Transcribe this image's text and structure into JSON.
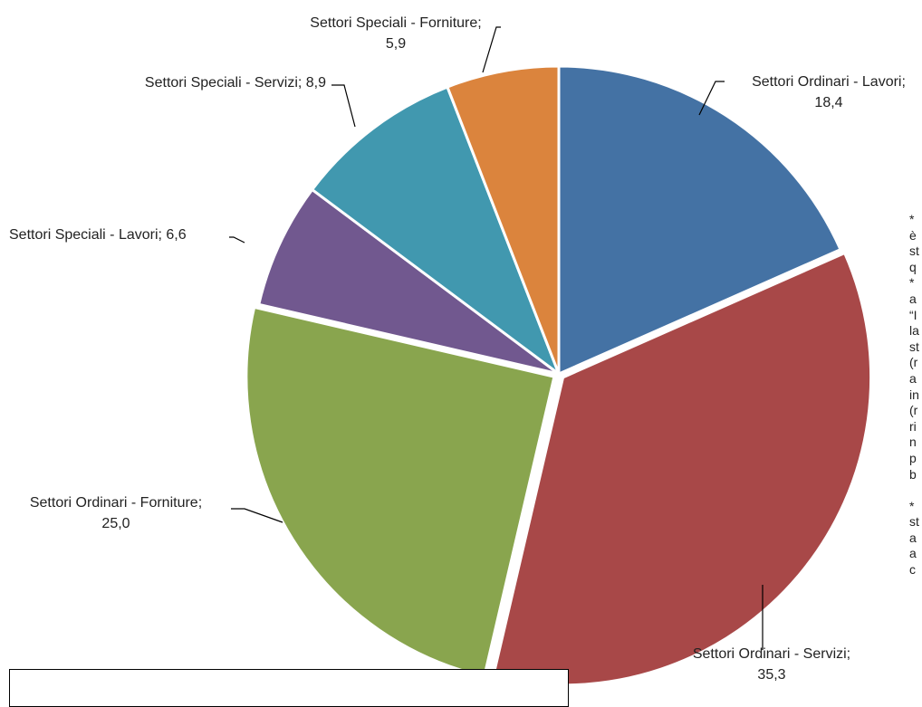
{
  "chart_data": {
    "type": "pie",
    "title": "",
    "slices": [
      {
        "label": "Settori Ordinari - Lavori",
        "value": 18.4,
        "value_text": "18,4",
        "color": "#4472A4"
      },
      {
        "label": "Settori Ordinari - Servizi",
        "value": 35.3,
        "value_text": "35,3",
        "color": "#A84848"
      },
      {
        "label": "Settori Ordinari - Forniture",
        "value": 25.0,
        "value_text": "25,0",
        "color": "#89A54E"
      },
      {
        "label": "Settori Speciali - Lavori",
        "value": 6.6,
        "value_text": "6,6",
        "color": "#71588F"
      },
      {
        "label": "Settori Speciali - Servizi",
        "value": 8.9,
        "value_text": "8,9",
        "color": "#4198AF"
      },
      {
        "label": "Settori Speciali - Forniture",
        "value": 5.9,
        "value_text": "5,9",
        "color": "#DB843D"
      }
    ],
    "data_labels": [
      {
        "lines": [
          "Settori Ordinari - Lavori;",
          "18,4"
        ]
      },
      {
        "lines": [
          "Settori Ordinari - Servizi;",
          "35,3"
        ]
      },
      {
        "lines": [
          "Settori Ordinari - Forniture;",
          "25,0"
        ]
      },
      {
        "lines": [
          "Settori Speciali - Lavori; 6,6"
        ]
      },
      {
        "lines": [
          "Settori Speciali - Servizi; 8,9"
        ]
      },
      {
        "lines": [
          "Settori Speciali - Forniture;",
          "5,9"
        ]
      }
    ],
    "legend": "none"
  },
  "side_notes": {
    "lines": [
      "*",
      "è",
      "st",
      "q",
      "*",
      "a",
      "“I",
      "la",
      "st",
      "(r",
      "a",
      "in",
      "(r",
      "ri",
      "n",
      "p",
      "b",
      "",
      "*",
      "st",
      "a",
      "a",
      "c"
    ]
  }
}
